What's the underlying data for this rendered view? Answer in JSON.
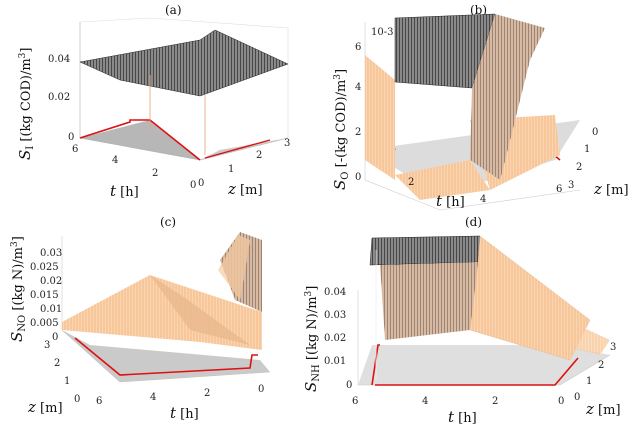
{
  "chart_data": [
    {
      "type": "surface",
      "title": "(a)",
      "zlabel_sym": "S",
      "zlabel_sub": "I",
      "zlabel_unit": " [(kg COD)/m",
      "zlabel_pow": "3",
      "zlabel_end": "]",
      "xlabel_sym": "t",
      "xlabel_unit": " [h]",
      "ylabel_sym": "z",
      "ylabel_unit": " [m]",
      "x_ticks": [
        "6",
        "4",
        "2",
        "0"
      ],
      "y_ticks": [
        "0",
        "1",
        "2",
        "3"
      ],
      "z_ticks": [
        "0.04",
        "0.02",
        "0"
      ],
      "zlim": [
        0,
        0.04
      ]
    },
    {
      "type": "surface",
      "title": "(b)",
      "zlabel_sym": "S",
      "zlabel_sub": "O",
      "zlabel_unit": " [-(kg COD)/m",
      "zlabel_pow": "3",
      "zlabel_end": "]",
      "z_exponent": "10-3",
      "xlabel_sym": "t",
      "xlabel_unit": " [h]",
      "ylabel_sym": "z",
      "ylabel_unit": " [m]",
      "x_ticks": [
        "2",
        "4",
        "6"
      ],
      "y_ticks": [
        "0",
        "1",
        "2",
        "3"
      ],
      "z_ticks": [
        "0",
        "2",
        "4",
        "6"
      ]
    },
    {
      "type": "surface",
      "title": "(c)",
      "zlabel_sym": "S",
      "zlabel_sub": "NO",
      "zlabel_unit": " [(kg N)/m",
      "zlabel_pow": "3",
      "zlabel_end": "]",
      "xlabel_sym": "t",
      "xlabel_unit": " [h]",
      "ylabel_sym": "z",
      "ylabel_unit": " [m]",
      "x_ticks": [
        "6",
        "4",
        "2",
        "0"
      ],
      "y_ticks": [
        "3",
        "2",
        "1",
        "0"
      ],
      "z_ticks": [
        "0.03",
        "0.025",
        "0.02",
        "0.015",
        "0.01",
        "0.005",
        "0"
      ],
      "zlim": [
        0,
        0.03
      ]
    },
    {
      "type": "surface",
      "title": "(d)",
      "zlabel_sym": "S",
      "zlabel_sub": "NH",
      "zlabel_unit": " [(kg N)/m",
      "zlabel_pow": "3",
      "zlabel_end": "]",
      "xlabel_sym": "t",
      "xlabel_unit": " [h]",
      "ylabel_sym": "z",
      "ylabel_unit": " [m]",
      "x_ticks": [
        "6",
        "4",
        "2",
        "0"
      ],
      "y_ticks": [
        "0",
        "1",
        "2",
        "3"
      ],
      "z_ticks": [
        "0.04",
        "0.03",
        "0.02",
        "0.01",
        "0"
      ],
      "zlim": [
        0,
        0.04
      ]
    }
  ]
}
